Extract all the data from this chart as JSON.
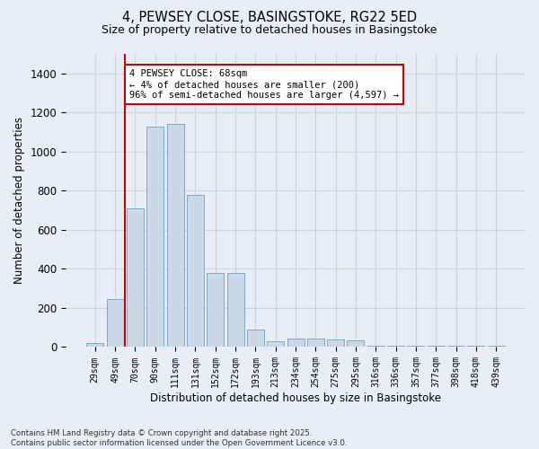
{
  "title_line1": "4, PEWSEY CLOSE, BASINGSTOKE, RG22 5ED",
  "title_line2": "Size of property relative to detached houses in Basingstoke",
  "xlabel": "Distribution of detached houses by size in Basingstoke",
  "ylabel": "Number of detached properties",
  "categories": [
    "29sqm",
    "49sqm",
    "70sqm",
    "90sqm",
    "111sqm",
    "131sqm",
    "152sqm",
    "172sqm",
    "193sqm",
    "213sqm",
    "234sqm",
    "254sqm",
    "275sqm",
    "295sqm",
    "316sqm",
    "336sqm",
    "357sqm",
    "377sqm",
    "398sqm",
    "418sqm",
    "439sqm"
  ],
  "values": [
    20,
    245,
    710,
    1130,
    1140,
    780,
    380,
    380,
    90,
    30,
    45,
    45,
    40,
    35,
    5,
    5,
    5,
    5,
    5,
    5,
    5
  ],
  "bar_color": "#c9d9e8",
  "bar_edge_color": "#7baac8",
  "grid_color": "#c8d4e0",
  "background_color": "#e8eef5",
  "vline_x": 1.5,
  "vline_color": "#cc0000",
  "annotation_text": "4 PEWSEY CLOSE: 68sqm\n← 4% of detached houses are smaller (200)\n96% of semi-detached houses are larger (4,597) →",
  "annotation_box_color": "#ffffff",
  "annotation_box_edge": "#cc0000",
  "footnote": "Contains HM Land Registry data © Crown copyright and database right 2025.\nContains public sector information licensed under the Open Government Licence v3.0.",
  "ylim": [
    0,
    1500
  ],
  "yticks": [
    0,
    200,
    400,
    600,
    800,
    1000,
    1200,
    1400
  ]
}
